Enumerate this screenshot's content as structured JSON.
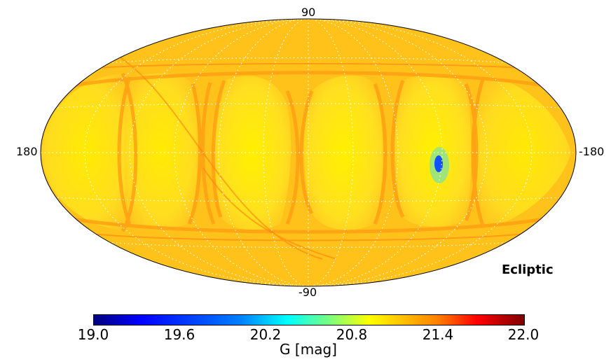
{
  "map": {
    "projection": "mollweide",
    "frame_label": "Ecliptic",
    "lat_top_label": "90",
    "lat_bottom_label": "-90",
    "lon_left_label": "180",
    "lon_right_label": "-180",
    "graticule": true
  },
  "colorbar": {
    "ticks": [
      "19.0",
      "19.6",
      "20.2",
      "20.8",
      "21.4",
      "22.0"
    ],
    "label": "G [mag]",
    "range": [
      19.0,
      22.0
    ],
    "colormap": "jet"
  },
  "colors": {
    "background_fill": "#ffc21a",
    "bright_fill": "#ffe81a",
    "scan_band": "#ff9a10",
    "anomaly": "#1050ff",
    "anomaly_cyan": "#30e0e0"
  }
}
